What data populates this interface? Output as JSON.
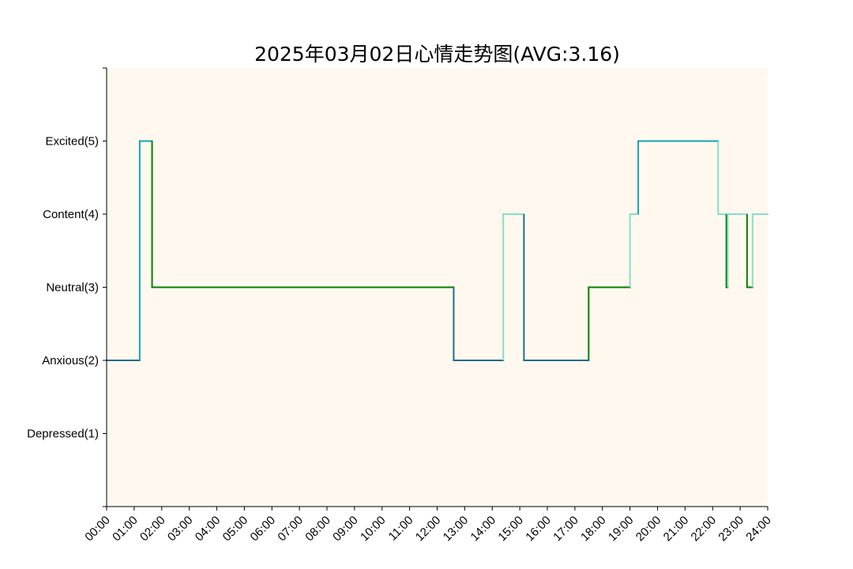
{
  "chart_data": {
    "type": "line",
    "step": true,
    "title": "2025年03月02日心情走势图(AVG:3.16)",
    "xlabel": "",
    "ylabel": "",
    "x_unit": "hours",
    "xlim": [
      0,
      24
    ],
    "ylim": [
      0,
      6
    ],
    "background_color": "#FFF8EE",
    "y_ticks": [
      {
        "value": 1,
        "label": "Depressed(1)"
      },
      {
        "value": 2,
        "label": "Anxious(2)"
      },
      {
        "value": 3,
        "label": "Neutral(3)"
      },
      {
        "value": 4,
        "label": "Content(4)"
      },
      {
        "value": 5,
        "label": "Excited(5)"
      }
    ],
    "x_ticks": [
      "00:00",
      "01:00",
      "02:00",
      "03:00",
      "04:00",
      "05:00",
      "06:00",
      "07:00",
      "08:00",
      "09:00",
      "10:00",
      "11:00",
      "12:00",
      "13:00",
      "14:00",
      "15:00",
      "16:00",
      "17:00",
      "18:00",
      "19:00",
      "20:00",
      "21:00",
      "22:00",
      "23:00",
      "24:00"
    ],
    "level_colors": {
      "1": "#1F3A93",
      "2": "#1F6E8C",
      "3": "#008000",
      "4": "#88DDCC",
      "5": "#17A2B8"
    },
    "points": [
      {
        "x": 0.0,
        "y": 2
      },
      {
        "x": 1.2,
        "y": 5
      },
      {
        "x": 1.65,
        "y": 3
      },
      {
        "x": 12.6,
        "y": 2
      },
      {
        "x": 14.4,
        "y": 4
      },
      {
        "x": 15.15,
        "y": 2
      },
      {
        "x": 17.5,
        "y": 3
      },
      {
        "x": 19.0,
        "y": 4
      },
      {
        "x": 19.3,
        "y": 5
      },
      {
        "x": 22.2,
        "y": 4
      },
      {
        "x": 22.5,
        "y": 3
      },
      {
        "x": 22.55,
        "y": 4
      },
      {
        "x": 23.25,
        "y": 3
      },
      {
        "x": 23.45,
        "y": 4
      },
      {
        "x": 24.0,
        "y": 4
      }
    ]
  }
}
